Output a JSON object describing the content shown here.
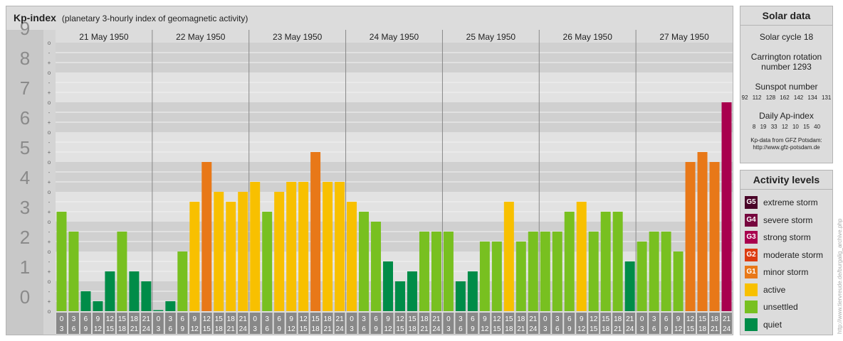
{
  "header": {
    "title": "Kp-index",
    "subtitle": "(planetary 3-hourly index of geomagnetic activity)"
  },
  "chart_data": {
    "type": "bar",
    "title": "Kp-index",
    "subtitle": "(planetary 3-hourly index of geomagnetic activity)",
    "ylim": [
      0,
      9
    ],
    "y_ticks": [
      "0",
      "1",
      "2",
      "3",
      "4",
      "5",
      "6",
      "7",
      "8",
      "9"
    ],
    "minor_tick_labels": [
      "-",
      "o",
      "+"
    ],
    "days": [
      "21 May 1950",
      "22 May 1950",
      "23 May 1950",
      "24 May 1950",
      "25 May 1950",
      "26 May 1950",
      "27 May 1950"
    ],
    "interval_labels": [
      [
        "0",
        "3"
      ],
      [
        "3",
        "6"
      ],
      [
        "6",
        "9"
      ],
      [
        "9",
        "12"
      ],
      [
        "12",
        "15"
      ],
      [
        "15",
        "18"
      ],
      [
        "18",
        "21"
      ],
      [
        "21",
        "24"
      ]
    ],
    "values": [
      3.333,
      2.667,
      0.667,
      0.333,
      1.333,
      2.667,
      1.333,
      1.0,
      0.0,
      0.333,
      2.0,
      3.667,
      5.0,
      4.0,
      3.667,
      4.0,
      4.333,
      3.333,
      4.0,
      4.333,
      4.333,
      5.333,
      4.333,
      4.333,
      3.667,
      3.333,
      3.0,
      1.667,
      1.0,
      1.333,
      2.667,
      2.667,
      2.667,
      1.0,
      1.333,
      2.333,
      2.333,
      3.667,
      2.333,
      2.667,
      2.667,
      2.667,
      3.333,
      3.667,
      2.667,
      3.333,
      3.333,
      1.667,
      2.333,
      2.667,
      2.667,
      2.0,
      5.0,
      5.333,
      5.0,
      7.0
    ],
    "grid": true,
    "legend": "right"
  },
  "solar": {
    "title": "Solar data",
    "cycle": "Solar cycle 18",
    "carrington_1": "Carrington rotation",
    "carrington_2": "number 1293",
    "sunspot_title": "Sunspot number",
    "sunspot_values": "92 112 128 162 142 134 131",
    "ap_title": "Daily Ap-index",
    "ap_values": "8 19 33 12 10 15 40",
    "credit_1": "Kp-data from GFZ Potsdam:",
    "credit_2": "http://www.gfz-potsdam.de"
  },
  "levels": {
    "title": "Activity levels",
    "items": [
      {
        "code": "G5",
        "label": "extreme storm",
        "color": "#4a0428"
      },
      {
        "code": "G4",
        "label": "severe storm",
        "color": "#76063e"
      },
      {
        "code": "G3",
        "label": "strong storm",
        "color": "#a8004e"
      },
      {
        "code": "G2",
        "label": "moderate storm",
        "color": "#dc3c10"
      },
      {
        "code": "G1",
        "label": "minor storm",
        "color": "#e87818"
      },
      {
        "code": "",
        "label": "active",
        "color": "#f8c000"
      },
      {
        "code": "",
        "label": "unsettled",
        "color": "#78c020"
      },
      {
        "code": "",
        "label": "quiet",
        "color": "#008c48"
      }
    ]
  },
  "watermark": "http://www.tiervreude.de/burgalig_archive.php"
}
